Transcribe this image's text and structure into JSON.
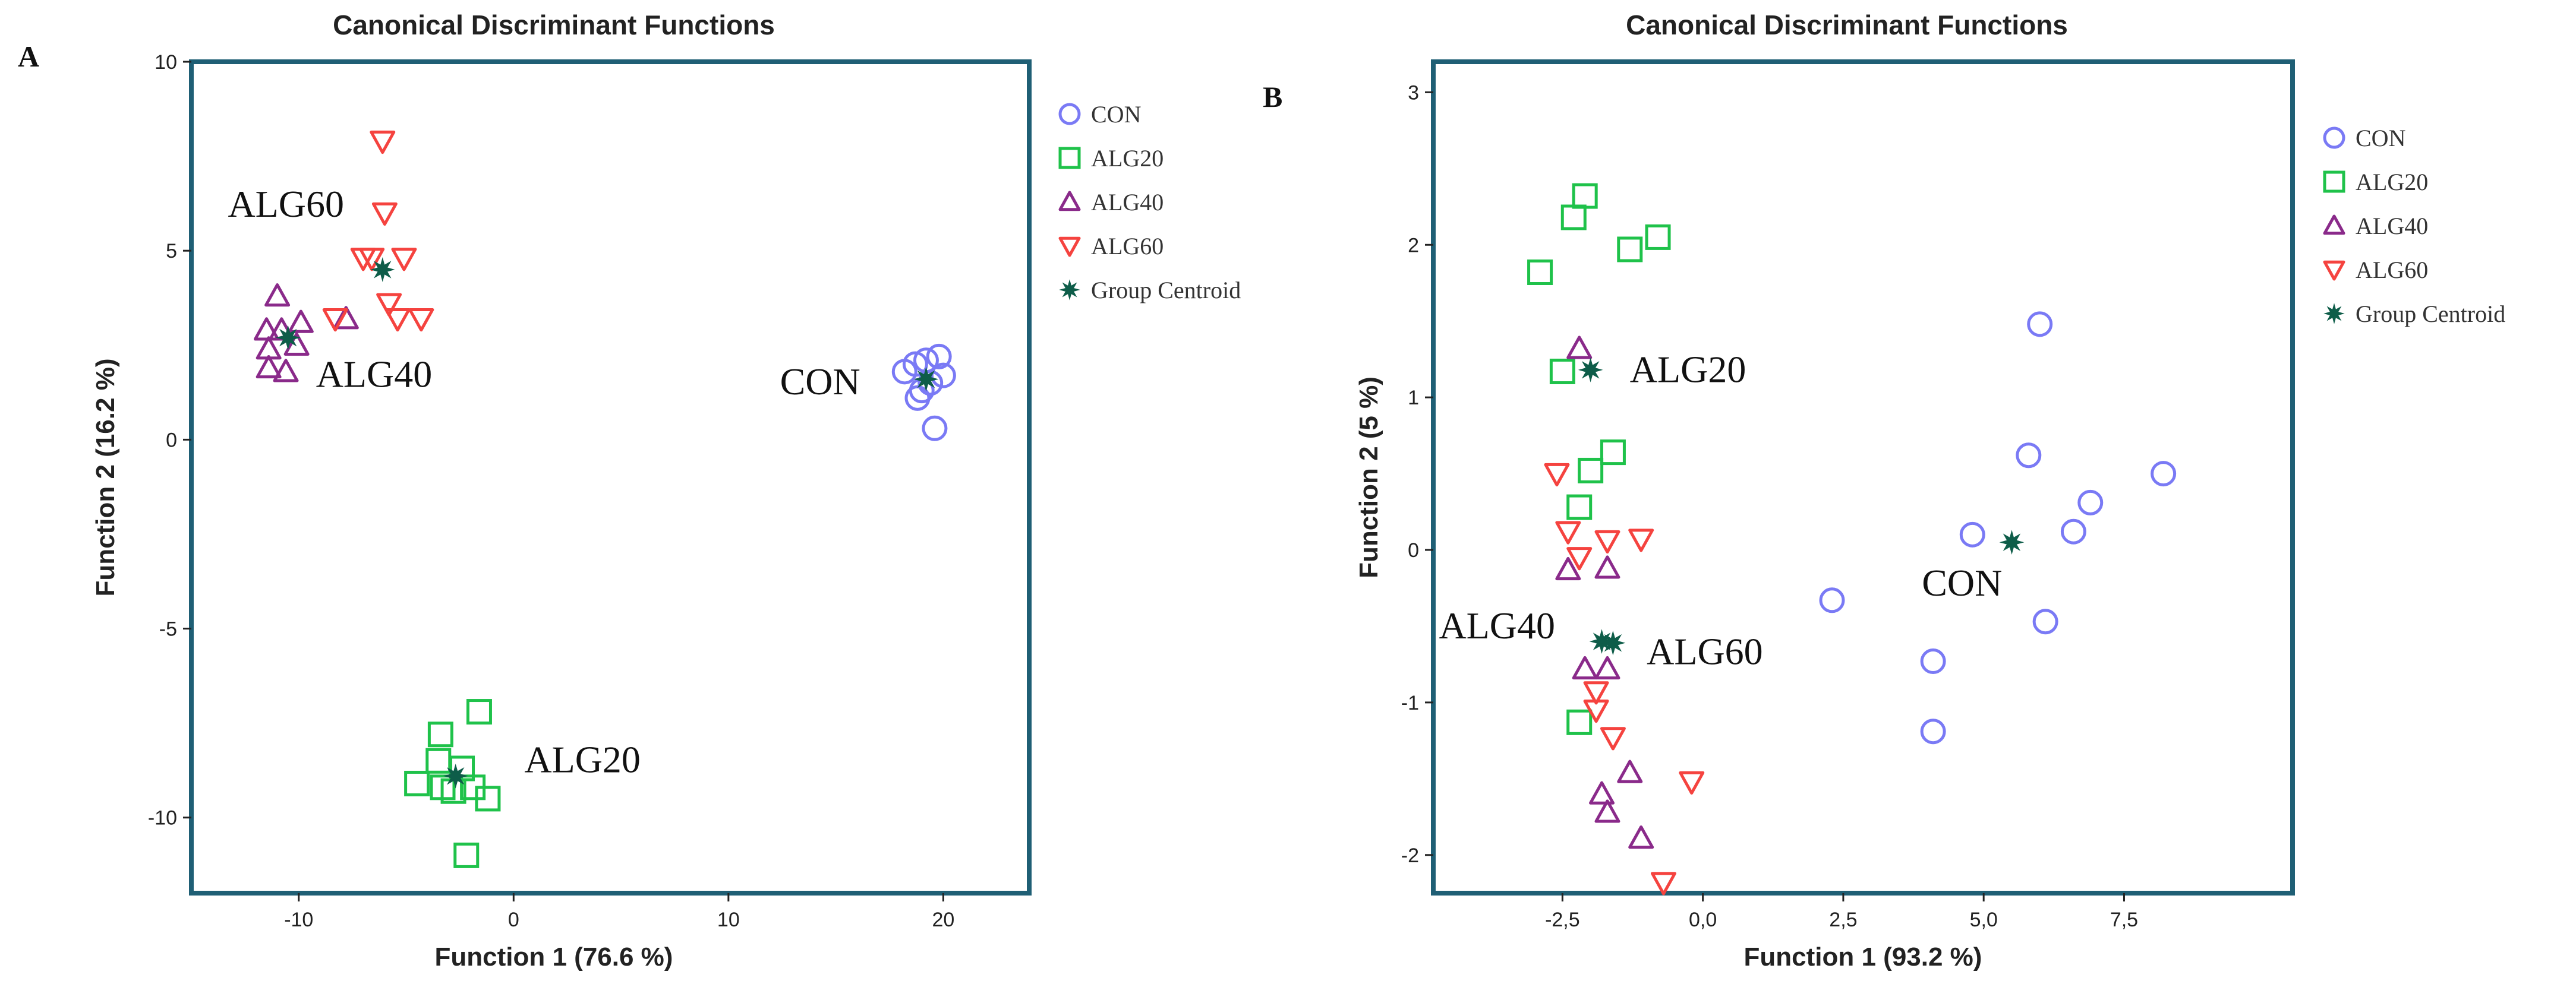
{
  "colors": {
    "CON": "#7a7af5",
    "ALG20": "#1fc24a",
    "ALG40": "#8a2a8a",
    "ALG60": "#f5433f",
    "Group Centroid": "#0e5d49",
    "frame": "#1f5f75"
  },
  "chart_data": [
    {
      "panel": "A",
      "type": "scatter",
      "title": "Canonical Discriminant Functions",
      "xlabel": "Function 1 (76.6 %)",
      "ylabel": "Function 2 (16.2 %)",
      "xlim": [
        -15,
        24
      ],
      "ylim": [
        -12,
        10
      ],
      "xticks": [
        -10,
        0,
        10,
        20
      ],
      "xtick_labels": [
        "-10",
        "0",
        "10",
        "20"
      ],
      "yticks": [
        10,
        5,
        0,
        -5,
        -10
      ],
      "ytick_labels": [
        "10",
        "5",
        "0",
        "-5",
        "-10"
      ],
      "legend": [
        "CON",
        "ALG20",
        "ALG40",
        "ALG60",
        "Group Centroid"
      ],
      "series": [
        {
          "name": "CON",
          "marker": "circle",
          "points": [
            [
              19.8,
              2.2
            ],
            [
              19.2,
              2.1
            ],
            [
              18.7,
              2.0
            ],
            [
              18.2,
              1.8
            ],
            [
              20.0,
              1.7
            ],
            [
              19.4,
              1.5
            ],
            [
              19.0,
              1.3
            ],
            [
              18.8,
              1.1
            ],
            [
              19.6,
              0.3
            ]
          ]
        },
        {
          "name": "ALG20",
          "marker": "square",
          "points": [
            [
              -1.6,
              -7.2
            ],
            [
              -3.4,
              -7.8
            ],
            [
              -3.5,
              -8.5
            ],
            [
              -2.4,
              -8.7
            ],
            [
              -4.5,
              -9.1
            ],
            [
              -3.3,
              -9.2
            ],
            [
              -2.8,
              -9.3
            ],
            [
              -1.9,
              -9.2
            ],
            [
              -1.2,
              -9.5
            ],
            [
              -2.2,
              -11.0
            ]
          ]
        },
        {
          "name": "ALG40",
          "marker": "triangle-up",
          "points": [
            [
              -11.0,
              3.8
            ],
            [
              -11.5,
              2.9
            ],
            [
              -10.8,
              2.9
            ],
            [
              -9.9,
              3.1
            ],
            [
              -7.8,
              3.2
            ],
            [
              -11.4,
              2.4
            ],
            [
              -10.1,
              2.5
            ],
            [
              -11.4,
              1.9
            ],
            [
              -10.6,
              1.8
            ]
          ]
        },
        {
          "name": "ALG60",
          "marker": "triangle-down",
          "points": [
            [
              -6.1,
              7.9
            ],
            [
              -6.0,
              6.0
            ],
            [
              -5.1,
              4.8
            ],
            [
              -6.6,
              4.8
            ],
            [
              -7.0,
              4.8
            ],
            [
              -5.8,
              3.6
            ],
            [
              -5.4,
              3.2
            ],
            [
              -8.3,
              3.2
            ],
            [
              -4.3,
              3.2
            ]
          ]
        },
        {
          "name": "Group Centroid",
          "marker": "star",
          "points": [
            [
              19.2,
              1.6
            ],
            [
              -2.7,
              -8.9
            ],
            [
              -10.5,
              2.7
            ],
            [
              -6.1,
              4.5
            ]
          ]
        }
      ],
      "annotations": [
        {
          "text": "ALG60",
          "x": -13.3,
          "y": 5.9
        },
        {
          "text": "ALG40",
          "x": -9.2,
          "y": 1.4
        },
        {
          "text": "CON",
          "x": 12.4,
          "y": 1.2
        },
        {
          "text": "ALG20",
          "x": 0.5,
          "y": -8.8
        }
      ]
    },
    {
      "panel": "B",
      "type": "scatter",
      "title": "Canonical Discriminant Functions",
      "xlabel": "Function 1 (93.2 %)",
      "ylabel": "Function 2 (5 %)",
      "xlim": [
        -4.8,
        10.5
      ],
      "ylim": [
        -2.25,
        3.2
      ],
      "xticks": [
        -2.5,
        0,
        2.5,
        5,
        7.5
      ],
      "xtick_labels": [
        "-2,5",
        "0,0",
        "2,5",
        "5,0",
        "7,5"
      ],
      "yticks": [
        3,
        2,
        1,
        0,
        -1,
        -2
      ],
      "ytick_labels": [
        "3",
        "2",
        "1",
        "0",
        "-1",
        "-2"
      ],
      "legend": [
        "CON",
        "ALG20",
        "ALG40",
        "ALG60",
        "Group Centroid"
      ],
      "series": [
        {
          "name": "CON",
          "marker": "circle",
          "points": [
            [
              6.0,
              1.48
            ],
            [
              8.2,
              0.5
            ],
            [
              5.8,
              0.62
            ],
            [
              6.9,
              0.31
            ],
            [
              4.8,
              0.1
            ],
            [
              6.6,
              0.12
            ],
            [
              2.3,
              -0.33
            ],
            [
              6.1,
              -0.47
            ],
            [
              4.1,
              -0.73
            ],
            [
              4.1,
              -1.19
            ]
          ]
        },
        {
          "name": "ALG20",
          "marker": "square",
          "points": [
            [
              -2.1,
              2.32
            ],
            [
              -2.3,
              2.18
            ],
            [
              -0.8,
              2.05
            ],
            [
              -1.3,
              1.97
            ],
            [
              -2.9,
              1.82
            ],
            [
              -2.5,
              1.17
            ],
            [
              -1.6,
              0.64
            ],
            [
              -2.0,
              0.52
            ],
            [
              -2.2,
              0.28
            ],
            [
              -2.2,
              -1.13
            ]
          ]
        },
        {
          "name": "ALG40",
          "marker": "triangle-up",
          "points": [
            [
              -2.2,
              1.32
            ],
            [
              -2.4,
              -0.13
            ],
            [
              -1.7,
              -0.12
            ],
            [
              -2.1,
              -0.78
            ],
            [
              -1.7,
              -0.78
            ],
            [
              -1.8,
              -1.6
            ],
            [
              -1.7,
              -1.72
            ],
            [
              -1.3,
              -1.46
            ],
            [
              -1.1,
              -1.89
            ]
          ]
        },
        {
          "name": "ALG60",
          "marker": "triangle-down",
          "points": [
            [
              -2.6,
              0.5
            ],
            [
              -2.4,
              0.12
            ],
            [
              -1.7,
              0.06
            ],
            [
              -1.1,
              0.07
            ],
            [
              -2.2,
              -0.05
            ],
            [
              -1.9,
              -0.93
            ],
            [
              -1.9,
              -1.05
            ],
            [
              -1.6,
              -1.23
            ],
            [
              -0.2,
              -1.52
            ],
            [
              -0.7,
              -2.18
            ]
          ]
        },
        {
          "name": "Group Centroid",
          "marker": "star",
          "points": [
            [
              -2.0,
              1.18
            ],
            [
              5.5,
              0.05
            ],
            [
              -1.8,
              -0.6
            ],
            [
              -1.6,
              -0.61
            ]
          ]
        }
      ],
      "annotations": [
        {
          "text": "ALG20",
          "x": -1.3,
          "y": 1.1
        },
        {
          "text": "CON",
          "x": 3.9,
          "y": -0.3
        },
        {
          "text": "ALG40",
          "x": -4.7,
          "y": -0.58
        },
        {
          "text": "ALG60",
          "x": -1.0,
          "y": -0.75
        }
      ]
    }
  ],
  "panel_letters": [
    "A",
    "B"
  ]
}
